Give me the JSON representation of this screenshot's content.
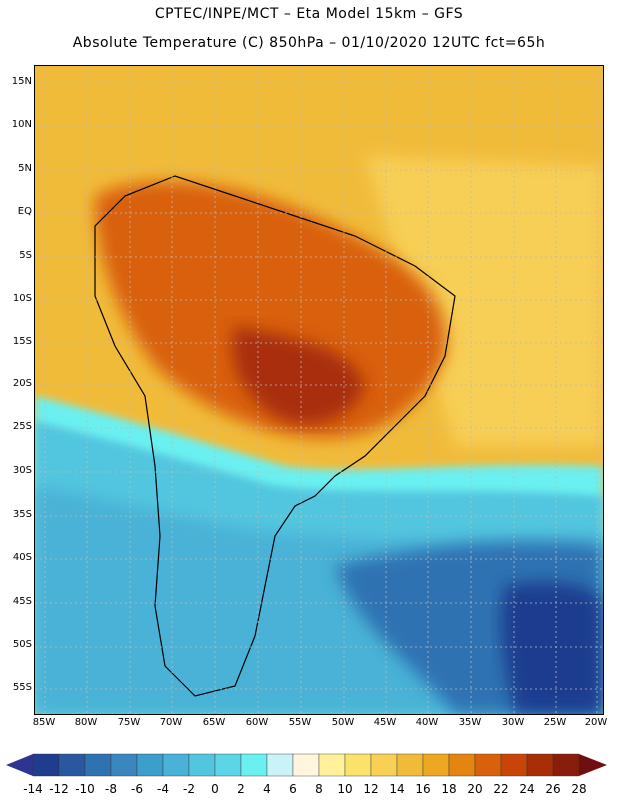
{
  "title_line1": "CPTEC/INPE/MCT –  Eta Model 15km – GFS",
  "title_line2": "Absolute Temperature (C) 850hPa – 01/10/2020 12UTC fct=65h",
  "lat_labels": [
    "15N",
    "10N",
    "5N",
    "EQ",
    "5S",
    "10S",
    "15S",
    "20S",
    "25S",
    "30S",
    "35S",
    "40S",
    "45S",
    "50S",
    "55S"
  ],
  "lon_labels": [
    "85W",
    "80W",
    "75W",
    "70W",
    "65W",
    "60W",
    "55W",
    "50W",
    "45W",
    "40W",
    "35W",
    "30W",
    "25W",
    "20W"
  ],
  "colorbar": {
    "labels": [
      "-14",
      "-12",
      "-10",
      "-8",
      "-6",
      "-4",
      "-2",
      "0",
      "2",
      "4",
      "6",
      "8",
      "10",
      "12",
      "14",
      "16",
      "18",
      "20",
      "22",
      "24",
      "26",
      "28"
    ],
    "under_color": "#2c3590",
    "over_color": "#6f0f12",
    "colors": [
      "#1f3d8f",
      "#2a58a0",
      "#2f72b2",
      "#3a87c0",
      "#3b9ecb",
      "#49b2d6",
      "#52c6df",
      "#5cd6e6",
      "#6af0f0",
      "#c9f3f7",
      "#fff6dd",
      "#fff29a",
      "#fbe26a",
      "#f7d055",
      "#f1bb3a",
      "#eda720",
      "#e48512",
      "#d9610c",
      "#c84509",
      "#a82e07",
      "#8a1d0a"
    ],
    "label_x": [
      20,
      46,
      72,
      98,
      124,
      150,
      176,
      202,
      228,
      254,
      280,
      306,
      332,
      358,
      384,
      410,
      436,
      462,
      488,
      514,
      540,
      566
    ]
  }
}
